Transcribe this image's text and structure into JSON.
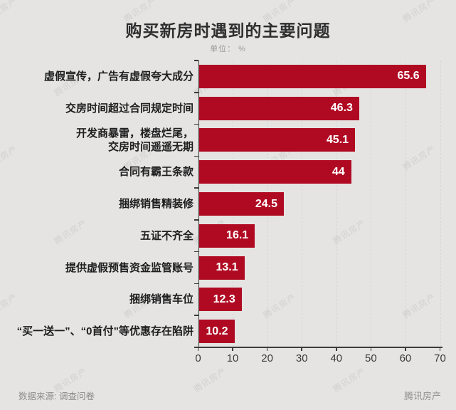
{
  "page": {
    "background_color": "#e5e4e3",
    "watermark_text": "腾讯房产"
  },
  "footer": {
    "source": "数据来源: 调查问卷",
    "brand": "腾讯房产"
  },
  "chart_data": {
    "type": "bar",
    "orientation": "horizontal",
    "title": "购买新房时遇到的主要问题",
    "unit_label": "单位： %",
    "categories": [
      "虚假宣传，广告有虚假夸大成分",
      "交房时间超过合同规定时间",
      "开发商暴雷，楼盘烂尾，\n交房时间遥遥无期",
      "合同有霸王条款",
      "捆绑销售精装修",
      "五证不齐全",
      "提供虚假预售资金监管账号",
      "捆绑销售车位",
      "“买一送一”、“0首付”等优惠存在陷阱"
    ],
    "values": [
      65.6,
      46.3,
      45.1,
      44,
      24.5,
      16.1,
      13.1,
      12.3,
      10.2
    ],
    "xlabel": "",
    "ylabel": "",
    "xlim": [
      0,
      70
    ],
    "x_ticks": [
      0,
      10,
      20,
      30,
      40,
      50,
      60,
      70
    ],
    "grid": "faint dashed vertical lines at each x tick",
    "legend": "none",
    "bar_color": "#b00a23",
    "value_label_color": "#ffffff",
    "axis_color": "#3c3c3c"
  }
}
